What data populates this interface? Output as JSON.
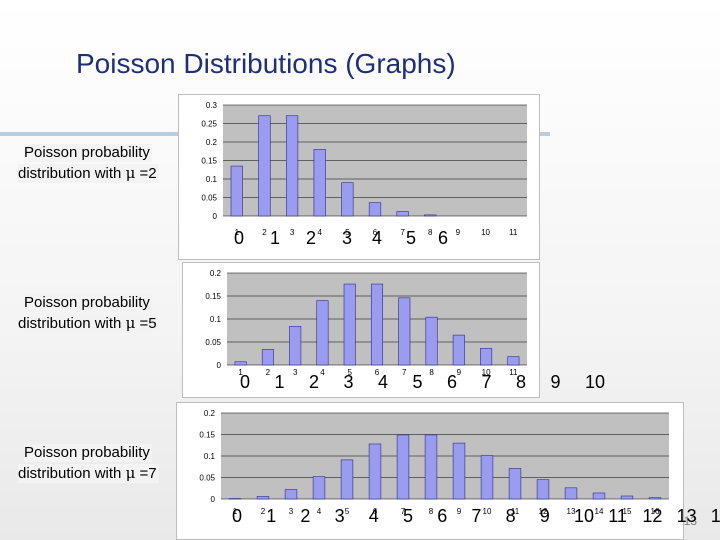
{
  "slide": {
    "title": "Poisson Distributions (Graphs)",
    "page_number": "13"
  },
  "panels": [
    {
      "label_line1": "Poisson probability",
      "label_line2_prefix": "distribution with ",
      "mu_symbol": "μ",
      "label_line2_suffix": " =2",
      "overlay_labels": [
        "0",
        "1",
        "2",
        "3",
        "4",
        "5",
        "6"
      ]
    },
    {
      "label_line1": "Poisson probability",
      "label_line2_prefix": "distribution with ",
      "mu_symbol": "μ",
      "label_line2_suffix": " =5",
      "overlay_labels": [
        "0",
        "1",
        "2",
        "3",
        "4",
        "5",
        "6",
        "7",
        "8",
        "9",
        "10"
      ]
    },
    {
      "label_line1": "Poisson probability",
      "label_line2_prefix": "distribution with ",
      "mu_symbol": "μ",
      "label_line2_suffix": " =7",
      "overlay_labels": [
        "0",
        "1",
        "2",
        "3",
        "4",
        "5",
        "6",
        "7",
        "8",
        "9",
        "10",
        "11",
        "12",
        "13",
        "14"
      ]
    }
  ],
  "chart_data": [
    {
      "type": "bar",
      "categories": [
        "1",
        "2",
        "3",
        "4",
        "5",
        "6",
        "7",
        "8",
        "9",
        "10",
        "11"
      ],
      "values": [
        0.135,
        0.271,
        0.271,
        0.18,
        0.09,
        0.036,
        0.012,
        0.003,
        0,
        0,
        0
      ],
      "yticks": [
        "0",
        "0.05",
        "0.1",
        "0.15",
        "0.2",
        "0.25",
        "0.3"
      ],
      "ylim": [
        0,
        0.3
      ],
      "grid": true,
      "bar_color": "#9a9cf0",
      "plot_bg": "#c0c0c0"
    },
    {
      "type": "bar",
      "categories": [
        "1",
        "2",
        "3",
        "4",
        "5",
        "6",
        "7",
        "8",
        "9",
        "10",
        "11"
      ],
      "values": [
        0.007,
        0.034,
        0.084,
        0.14,
        0.176,
        0.176,
        0.146,
        0.104,
        0.065,
        0.036,
        0.018
      ],
      "yticks": [
        "0",
        "0.05",
        "0.1",
        "0.15",
        "0.2"
      ],
      "ylim": [
        0,
        0.2
      ],
      "grid": true,
      "bar_color": "#9a9cf0",
      "plot_bg": "#c0c0c0"
    },
    {
      "type": "bar",
      "categories": [
        "1",
        "2",
        "3",
        "4",
        "5",
        "6",
        "7",
        "8",
        "9",
        "10",
        "11",
        "12",
        "13",
        "14",
        "15",
        "16"
      ],
      "values": [
        0.001,
        0.006,
        0.022,
        0.052,
        0.091,
        0.128,
        0.149,
        0.149,
        0.13,
        0.101,
        0.071,
        0.045,
        0.026,
        0.014,
        0.007,
        0.003
      ],
      "yticks": [
        "0",
        "0.05",
        "0.1",
        "0.15",
        "0.2"
      ],
      "ylim": [
        0,
        0.2
      ],
      "grid": true,
      "bar_color": "#9a9cf0",
      "plot_bg": "#c0c0c0"
    }
  ]
}
